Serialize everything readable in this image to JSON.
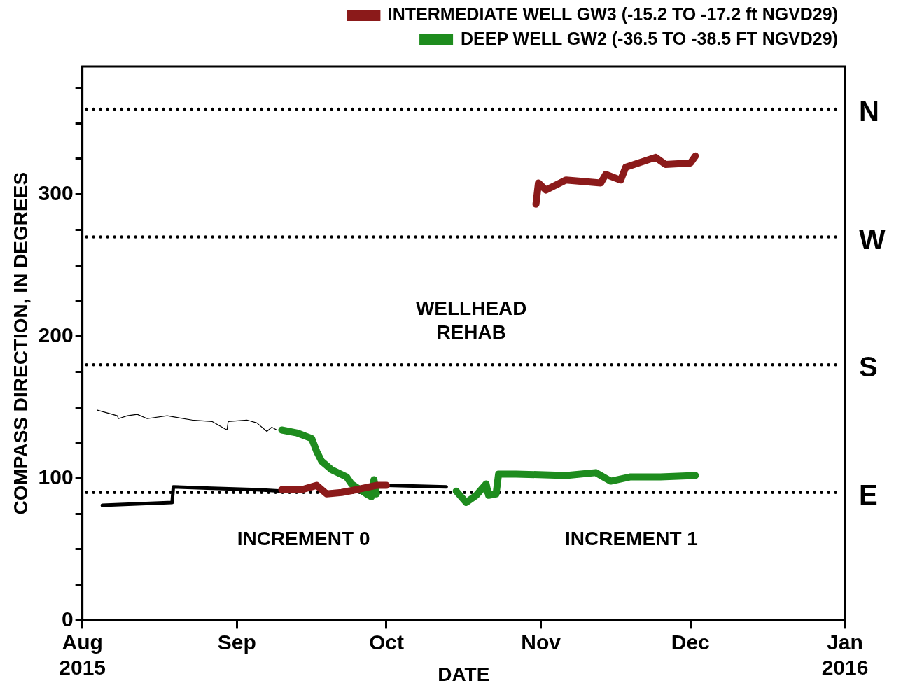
{
  "chart_data": {
    "type": "line",
    "xlabel": "DATE",
    "ylabel": "COMPASS DIRECTION, IN DEGREES",
    "legend": "top right",
    "marker": "none",
    "line_style": "solid",
    "grid": false,
    "xlim": [
      "2015-08-01",
      "2016-01-01"
    ],
    "xticks": [
      {
        "value": "2015-08-01",
        "label": "Aug\n2015"
      },
      {
        "value": "2015-09-01",
        "label": "Sep"
      },
      {
        "value": "2015-10-01",
        "label": "Oct"
      },
      {
        "value": "2015-11-01",
        "label": "Nov"
      },
      {
        "value": "2015-12-01",
        "label": "Dec"
      },
      {
        "value": "2016-01-01",
        "label": "Jan\n2016"
      }
    ],
    "ylim": [
      0,
      390
    ],
    "yticks": [
      0,
      {
        "value": 25,
        "label": null
      },
      {
        "value": 50,
        "label": null
      },
      {
        "value": 75,
        "label": null
      },
      100,
      {
        "value": 125,
        "label": null
      },
      {
        "value": 150,
        "label": null
      },
      {
        "value": 175,
        "label": null
      },
      200,
      {
        "value": 225,
        "label": null
      },
      {
        "value": 250,
        "label": null
      },
      {
        "value": 275,
        "label": null
      },
      300,
      {
        "value": 325,
        "label": null
      },
      {
        "value": 350,
        "label": null
      },
      {
        "value": 375,
        "label": null
      }
    ],
    "series": [
      {
        "name": "INTERMEDIATE WELL GW3 (-15.2 TO -17.2 ft NGVD29)",
        "color": "#8b1a1a",
        "x": [
          "2015-09-10",
          "2015-09-14",
          "2015-09-17",
          "2015-09-19",
          "2015-09-22",
          "2015-09-25",
          "2015-09-29",
          "2015-10-01",
          "2015-10-15",
          "2015-10-31",
          "2015-10-31T12:00",
          "2015-11-02",
          "2015-11-06",
          "2015-11-13",
          "2015-11-14",
          "2015-11-17",
          "2015-11-18",
          "2015-11-24",
          "2015-11-26",
          "2015-12-01",
          "2015-12-02"
        ],
        "values": [
          92,
          92,
          95,
          89,
          90,
          92,
          95,
          95,
          null,
          293,
          308,
          303,
          310,
          308,
          314,
          310,
          319,
          326,
          321,
          322,
          327
        ]
      },
      {
        "name": "DEEP WELL GW2 (-36.5 TO -38.5 FT NGVD29)",
        "color": "#1e8c1e",
        "x": [
          "2015-09-10",
          "2015-09-13",
          "2015-09-16",
          "2015-09-17",
          "2015-09-18",
          "2015-09-20",
          "2015-09-23",
          "2015-09-24",
          "2015-09-27",
          "2015-09-28",
          "2015-09-28T12:00",
          "2015-09-29",
          "2015-10-07",
          "2015-10-15",
          "2015-10-17",
          "2015-10-19",
          "2015-10-21",
          "2015-10-21T12:00",
          "2015-10-23",
          "2015-10-23T12:00",
          "2015-10-27",
          "2015-11-06",
          "2015-11-12",
          "2015-11-15",
          "2015-11-19",
          "2015-11-25",
          "2015-12-02"
        ],
        "values": [
          134,
          132,
          128,
          119,
          112,
          106,
          101,
          96,
          89,
          87,
          99,
          89,
          null,
          91,
          83,
          88,
          96,
          88,
          89,
          103,
          103,
          102,
          104,
          98,
          101,
          101,
          102
        ]
      },
      {
        "color": "#000000",
        "x": [
          "2015-08-05",
          "2015-08-19",
          "2015-08-19T06:00",
          "2015-08-27",
          "2015-09-05",
          "2015-09-10",
          "2015-09-20",
          "2015-10-01",
          "2015-10-13"
        ],
        "values": [
          81,
          83,
          94,
          93,
          92,
          91,
          null,
          95,
          94
        ]
      },
      {
        "color": "#000000",
        "x": [
          "2015-08-04",
          "2015-08-08",
          "2015-08-08T06:00",
          "2015-08-10",
          "2015-08-12",
          "2015-08-14",
          "2015-08-18",
          "2015-08-23",
          "2015-08-27",
          "2015-08-30",
          "2015-08-30T06:00",
          "2015-09-03",
          "2015-09-05",
          "2015-09-07",
          "2015-09-08",
          "2015-09-09"
        ],
        "values": [
          148,
          144,
          142,
          144,
          145,
          142,
          144,
          141,
          140,
          134,
          140,
          141,
          139,
          133,
          136,
          134
        ]
      }
    ],
    "ref_lines": [
      {
        "axis": "y",
        "value": 360,
        "label": "N",
        "line_style": "dotted",
        "color": "#000000"
      },
      {
        "axis": "y",
        "value": 270,
        "label": "W",
        "line_style": "dotted",
        "color": "#000000"
      },
      {
        "axis": "y",
        "value": 180,
        "label": "S",
        "line_style": "dotted",
        "color": "#000000"
      },
      {
        "axis": "y",
        "value": 90,
        "label": "E",
        "line_style": "dotted",
        "color": "#000000"
      }
    ],
    "annotations": [
      "WELLHEAD\nREHAB",
      "INCREMENT 0",
      "INCREMENT 1"
    ]
  }
}
